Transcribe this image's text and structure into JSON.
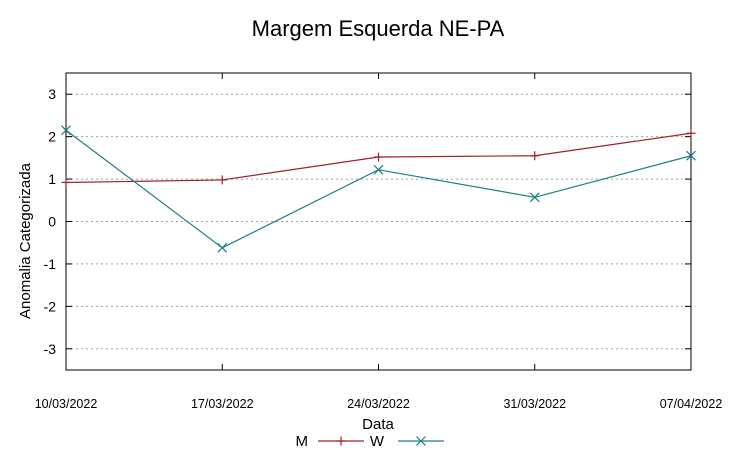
{
  "chart_data": {
    "type": "line",
    "title": "Margem Esquerda NE-PA",
    "xlabel": "Data",
    "ylabel": "Anomalia Categorizada",
    "categories": [
      "10/03/2022",
      "17/03/2022",
      "24/03/2022",
      "31/03/2022",
      "07/04/2022"
    ],
    "ylim": [
      -3.5,
      3.5
    ],
    "yticks": [
      "3",
      "2",
      "1",
      "0",
      "-1",
      "-2",
      "-3"
    ],
    "grid": true,
    "legend_position": "bottom",
    "series": [
      {
        "name": "M",
        "color": "#a0202a",
        "marker": "plus",
        "values": [
          0.92,
          0.98,
          1.52,
          1.55,
          2.08
        ]
      },
      {
        "name": "W",
        "color": "#1a7f86",
        "marker": "cross",
        "values": [
          2.15,
          -0.62,
          1.22,
          0.57,
          1.55
        ]
      }
    ]
  }
}
